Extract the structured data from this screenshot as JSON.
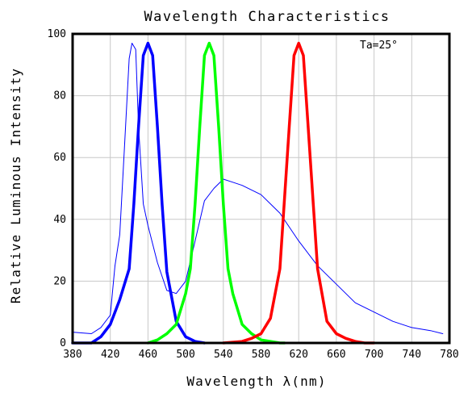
{
  "chart_data": {
    "type": "line",
    "title": "Wavelength Characteristics",
    "xlabel": "Wavelength λ(nm)",
    "ylabel": "Relative Luminous Intensity",
    "annotation": "Ta=25°",
    "xlim": [
      380,
      780
    ],
    "ylim": [
      0,
      100
    ],
    "x_ticks": [
      380,
      420,
      460,
      500,
      540,
      580,
      620,
      660,
      700,
      740,
      780
    ],
    "y_ticks": [
      0,
      20,
      40,
      60,
      80,
      100
    ],
    "grid": true,
    "legend": "none",
    "series": [
      {
        "color": "#0000ff",
        "line": "thin",
        "x": [
          380,
          400,
          410,
          420,
          425,
          430,
          435,
          440,
          443,
          447,
          450,
          455,
          460,
          470,
          480,
          490,
          500,
          510,
          520,
          530,
          540,
          550,
          560,
          580,
          600,
          620,
          640,
          660,
          680,
          700,
          720,
          740,
          760,
          773
        ],
        "y": [
          3.5,
          3,
          5,
          9,
          25,
          35,
          63,
          92,
          97,
          95,
          70,
          45,
          38,
          26,
          17,
          16,
          20,
          33,
          46,
          50,
          53,
          52,
          51,
          48,
          42,
          33,
          25,
          19,
          13,
          10,
          7,
          5,
          4,
          3
        ]
      },
      {
        "color": "#0000ff",
        "line": "thick",
        "x": [
          380,
          400,
          410,
          420,
          430,
          440,
          445,
          450,
          455,
          460,
          465,
          470,
          475,
          480,
          490,
          500,
          510,
          520
        ],
        "y": [
          0,
          0,
          2,
          6,
          14,
          24,
          45,
          70,
          93,
          97,
          93,
          70,
          45,
          23,
          7,
          2,
          0.5,
          0
        ]
      },
      {
        "color": "#00ff00",
        "line": "thick",
        "x": [
          460,
          470,
          480,
          490,
          500,
          505,
          510,
          515,
          520,
          525,
          530,
          535,
          540,
          545,
          550,
          560,
          570,
          580,
          590,
          600,
          605
        ],
        "y": [
          0,
          1,
          3,
          6,
          16,
          24,
          45,
          70,
          93,
          97,
          93,
          70,
          45,
          24,
          16,
          6,
          3,
          1,
          0.5,
          0,
          0
        ]
      },
      {
        "color": "#ff0000",
        "line": "thick",
        "x": [
          540,
          560,
          570,
          580,
          590,
          600,
          610,
          615,
          620,
          625,
          630,
          640,
          650,
          660,
          670,
          680,
          690,
          700
        ],
        "y": [
          0,
          0.5,
          1.5,
          3,
          8,
          24,
          70,
          93,
          97,
          93,
          70,
          24,
          7,
          3,
          1.5,
          0.5,
          0,
          0
        ]
      }
    ]
  }
}
